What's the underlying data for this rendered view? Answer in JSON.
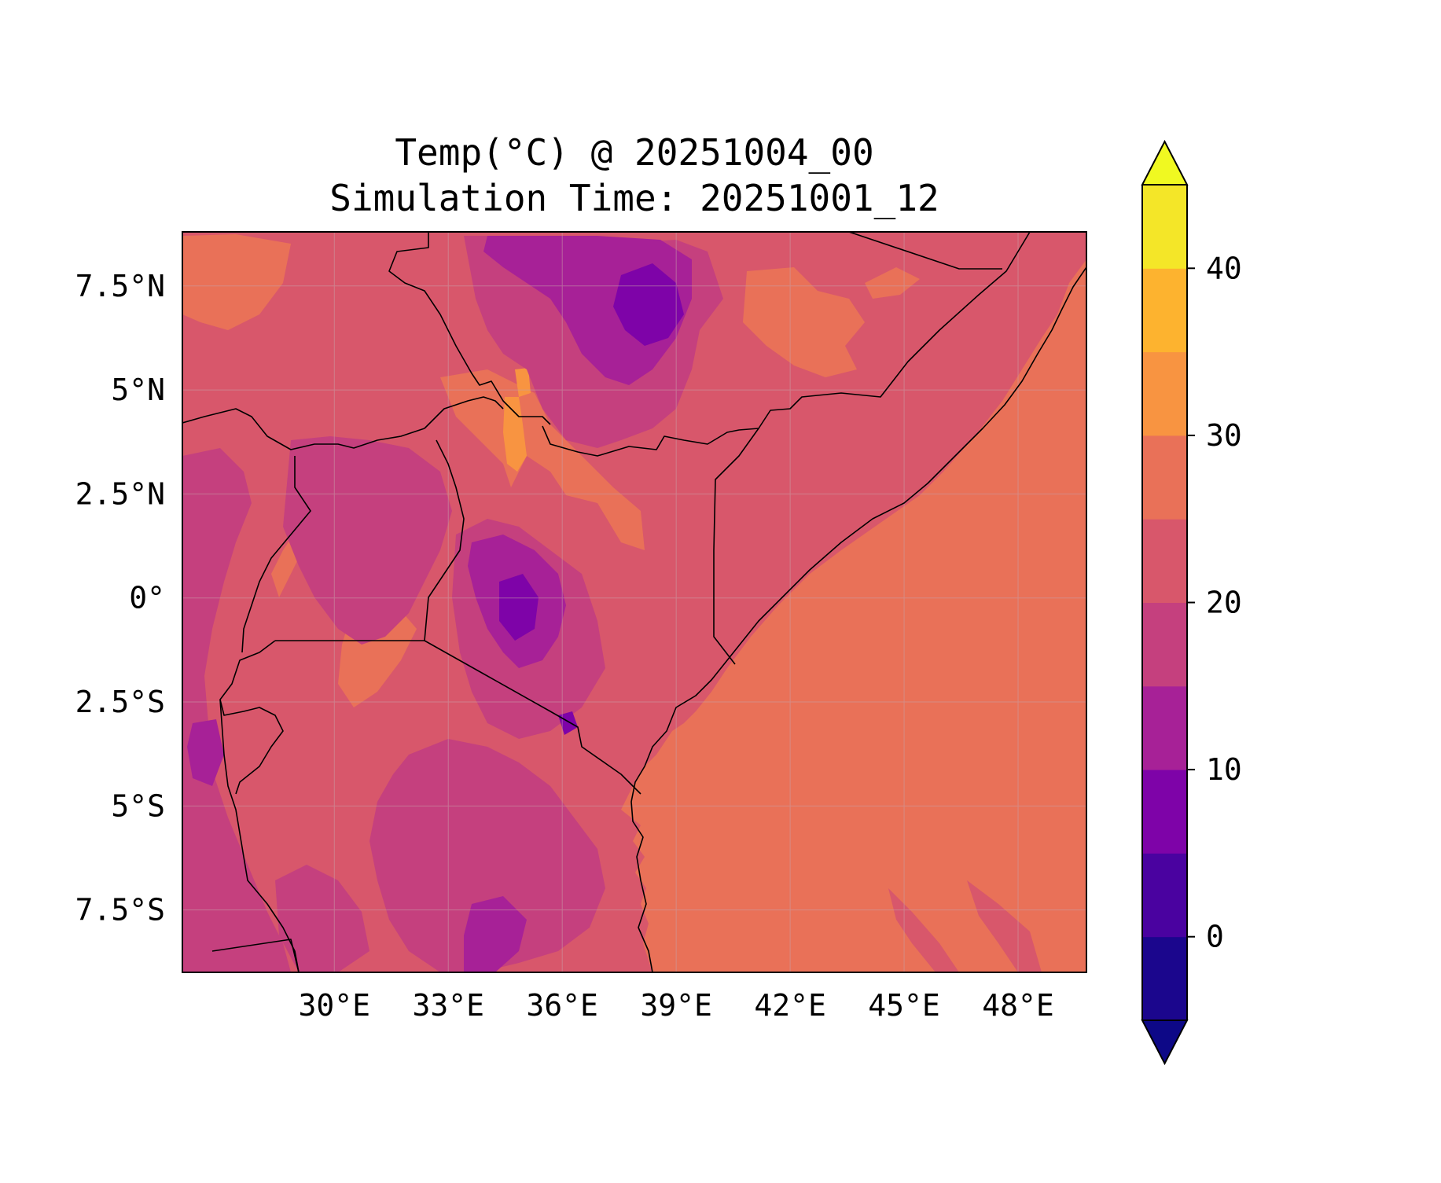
{
  "title": {
    "line1": "Temp(°C) @ 20251004_00",
    "line2": "Simulation Time: 20251001_12"
  },
  "map": {
    "lon_range": [
      26.0,
      49.8
    ],
    "lat_range": [
      -9.0,
      8.8
    ],
    "x_ticks": [
      "30°E",
      "33°E",
      "36°E",
      "39°E",
      "42°E",
      "45°E",
      "48°E"
    ],
    "y_ticks": [
      "7.5°N",
      "5°N",
      "2.5°N",
      "0°",
      "2.5°S",
      "5°S",
      "7.5°S"
    ],
    "gridlines": true,
    "x_tick_values": [
      30,
      33,
      36,
      39,
      42,
      45,
      48
    ],
    "y_tick_values": [
      7.5,
      5,
      2.5,
      0,
      -2.5,
      -5,
      -7.5
    ]
  },
  "colorbar": {
    "ticks": [
      "0",
      "10",
      "20",
      "30",
      "40"
    ],
    "tick_values": [
      0,
      10,
      20,
      30,
      40
    ],
    "levels": [
      -5,
      0,
      5,
      10,
      15,
      20,
      25,
      30,
      35,
      40,
      45
    ],
    "colors": [
      "#1b068d",
      "#4a02a0",
      "#7e03a8",
      "#a72197",
      "#c5407e",
      "#d8576b",
      "#e97158",
      "#f89441",
      "#fdb32f",
      "#f4e628"
    ],
    "extend_under_color": "#0d0887",
    "extend_over_color": "#f0f921"
  },
  "chart_data": {
    "type": "heatmap",
    "title": "Temp(°C) @ 20251004_00\nSimulation Time: 20251001_12",
    "variable": "Temp(°C)",
    "x_range": [
      26.0,
      49.8
    ],
    "y_range": [
      -9.0,
      8.8
    ],
    "value_range_shown": [
      5,
      40
    ],
    "dominant_levels": {
      "ocean": "25-30",
      "lowlands": "20-25",
      "highlands": "10-20",
      "hottest_spot": "30-35"
    }
  }
}
